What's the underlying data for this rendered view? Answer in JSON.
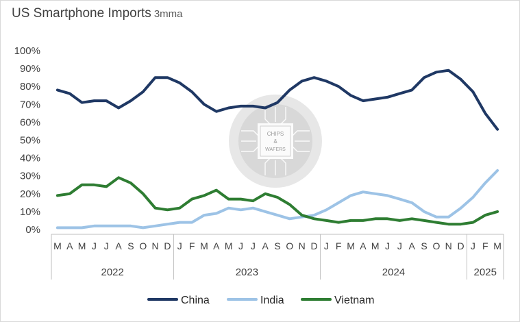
{
  "chart_data": {
    "type": "line",
    "title": "US Smartphone Imports",
    "subtitle": "3mma",
    "ylim": [
      0,
      100
    ],
    "yticks": [
      "0%",
      "10%",
      "20%",
      "30%",
      "40%",
      "50%",
      "60%",
      "70%",
      "80%",
      "90%",
      "100%"
    ],
    "x": [
      "M",
      "A",
      "M",
      "J",
      "J",
      "A",
      "S",
      "O",
      "N",
      "D",
      "J",
      "F",
      "M",
      "A",
      "M",
      "J",
      "J",
      "A",
      "S",
      "O",
      "N",
      "D",
      "J",
      "F",
      "M",
      "A",
      "M",
      "J",
      "J",
      "A",
      "S",
      "O",
      "N",
      "D",
      "J",
      "F",
      "M"
    ],
    "year_groups": [
      {
        "label": "2022",
        "count": 10
      },
      {
        "label": "2023",
        "count": 12
      },
      {
        "label": "2024",
        "count": 12
      },
      {
        "label": "2025",
        "count": 3
      }
    ],
    "legend_position": "bottom",
    "grid": false,
    "series": [
      {
        "name": "China",
        "color": "#1f3864",
        "values": [
          78,
          76,
          71,
          72,
          72,
          68,
          72,
          77,
          85,
          85,
          82,
          77,
          70,
          66,
          68,
          69,
          69,
          68,
          71,
          78,
          83,
          85,
          83,
          80,
          75,
          72,
          73,
          74,
          76,
          78,
          85,
          88,
          89,
          84,
          77,
          65,
          56
        ]
      },
      {
        "name": "India",
        "color": "#9dc3e6",
        "values": [
          1,
          1,
          1,
          2,
          2,
          2,
          2,
          1,
          2,
          3,
          4,
          4,
          8,
          9,
          12,
          11,
          12,
          10,
          8,
          6,
          7,
          8,
          11,
          15,
          19,
          21,
          20,
          19,
          17,
          15,
          10,
          7,
          7,
          12,
          18,
          26,
          33
        ]
      },
      {
        "name": "Vietnam",
        "color": "#2e7d32",
        "values": [
          19,
          20,
          25,
          25,
          24,
          29,
          26,
          20,
          12,
          11,
          12,
          17,
          19,
          22,
          17,
          17,
          16,
          20,
          18,
          14,
          8,
          6,
          5,
          4,
          5,
          5,
          6,
          6,
          5,
          6,
          5,
          4,
          3,
          3,
          4,
          8,
          10
        ]
      }
    ]
  },
  "watermark": {
    "top": "CHIPS",
    "mid": "&",
    "bottom": "WAFERS"
  }
}
